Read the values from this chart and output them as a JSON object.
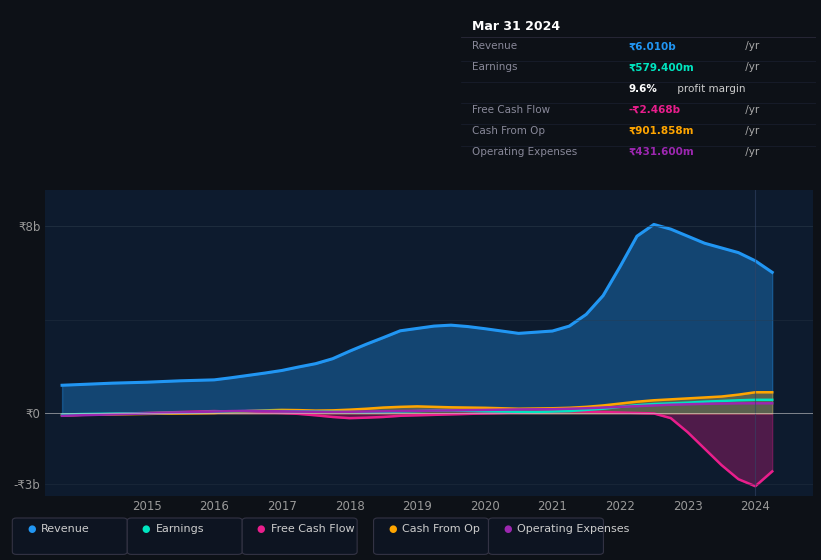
{
  "background_color": "#0d1117",
  "plot_bg_color": "#0d1b2e",
  "ylim": [
    -3500000000,
    9500000000
  ],
  "yticks": [
    -3000000000,
    0,
    8000000000
  ],
  "ytick_labels": [
    "-₹3b",
    "₹0",
    "₹8b"
  ],
  "xlim_start": 2013.5,
  "xlim_end": 2024.85,
  "xtick_years": [
    2015,
    2016,
    2017,
    2018,
    2019,
    2020,
    2021,
    2022,
    2023,
    2024
  ],
  "series": {
    "Revenue": {
      "color": "#2196f3",
      "fill_alpha": 0.35,
      "linewidth": 2.2,
      "x": [
        2013.75,
        2014.0,
        2014.25,
        2014.5,
        2014.75,
        2015.0,
        2015.25,
        2015.5,
        2015.75,
        2016.0,
        2016.25,
        2016.5,
        2016.75,
        2017.0,
        2017.25,
        2017.5,
        2017.75,
        2018.0,
        2018.25,
        2018.5,
        2018.75,
        2019.0,
        2019.25,
        2019.5,
        2019.75,
        2020.0,
        2020.25,
        2020.5,
        2020.75,
        2021.0,
        2021.25,
        2021.5,
        2021.75,
        2022.0,
        2022.25,
        2022.5,
        2022.75,
        2023.0,
        2023.25,
        2023.5,
        2023.75,
        2024.0,
        2024.25
      ],
      "y": [
        1200000000,
        1230000000,
        1260000000,
        1290000000,
        1310000000,
        1330000000,
        1360000000,
        1390000000,
        1410000000,
        1430000000,
        1520000000,
        1620000000,
        1720000000,
        1830000000,
        1980000000,
        2120000000,
        2330000000,
        2650000000,
        2950000000,
        3230000000,
        3520000000,
        3620000000,
        3720000000,
        3760000000,
        3700000000,
        3610000000,
        3510000000,
        3410000000,
        3460000000,
        3510000000,
        3720000000,
        4220000000,
        5020000000,
        6250000000,
        7550000000,
        8050000000,
        7850000000,
        7550000000,
        7250000000,
        7050000000,
        6850000000,
        6500000000,
        6010000000
      ]
    },
    "Earnings": {
      "color": "#00e5c0",
      "linewidth": 1.8,
      "x": [
        2013.75,
        2014.0,
        2014.25,
        2014.5,
        2014.75,
        2015.0,
        2015.25,
        2015.5,
        2015.75,
        2016.0,
        2016.25,
        2016.5,
        2016.75,
        2017.0,
        2017.25,
        2017.5,
        2017.75,
        2018.0,
        2018.25,
        2018.5,
        2018.75,
        2019.0,
        2019.25,
        2019.5,
        2019.75,
        2020.0,
        2020.25,
        2020.5,
        2020.75,
        2021.0,
        2021.25,
        2021.5,
        2021.75,
        2022.0,
        2022.25,
        2022.5,
        2022.75,
        2023.0,
        2023.25,
        2023.5,
        2023.75,
        2024.0,
        2024.25
      ],
      "y": [
        -50000000,
        -30000000,
        -20000000,
        -10000000,
        0,
        10000000,
        20000000,
        30000000,
        50000000,
        70000000,
        90000000,
        100000000,
        110000000,
        100000000,
        90000000,
        80000000,
        70000000,
        60000000,
        50000000,
        60000000,
        80000000,
        100000000,
        120000000,
        130000000,
        110000000,
        90000000,
        80000000,
        70000000,
        60000000,
        80000000,
        100000000,
        150000000,
        200000000,
        280000000,
        350000000,
        400000000,
        430000000,
        460000000,
        500000000,
        530000000,
        560000000,
        579400000,
        579400000
      ]
    },
    "Free Cash Flow": {
      "color": "#e91e8c",
      "fill_alpha": 0.3,
      "linewidth": 1.8,
      "x": [
        2013.75,
        2014.0,
        2014.25,
        2014.5,
        2014.75,
        2015.0,
        2015.25,
        2015.5,
        2015.75,
        2016.0,
        2016.25,
        2016.5,
        2016.75,
        2017.0,
        2017.25,
        2017.5,
        2017.75,
        2018.0,
        2018.25,
        2018.5,
        2018.75,
        2019.0,
        2019.25,
        2019.5,
        2019.75,
        2020.0,
        2020.25,
        2020.5,
        2020.75,
        2021.0,
        2021.25,
        2021.5,
        2021.75,
        2022.0,
        2022.25,
        2022.5,
        2022.75,
        2023.0,
        2023.25,
        2023.5,
        2023.75,
        2024.0,
        2024.25
      ],
      "y": [
        -80000000,
        -60000000,
        -40000000,
        -20000000,
        0,
        20000000,
        40000000,
        60000000,
        80000000,
        100000000,
        80000000,
        60000000,
        40000000,
        20000000,
        -20000000,
        -80000000,
        -150000000,
        -200000000,
        -180000000,
        -150000000,
        -100000000,
        -80000000,
        -60000000,
        -40000000,
        -20000000,
        0,
        20000000,
        40000000,
        60000000,
        80000000,
        100000000,
        80000000,
        60000000,
        40000000,
        20000000,
        0,
        -200000000,
        -800000000,
        -1500000000,
        -2200000000,
        -2800000000,
        -3100000000,
        -2468000000
      ]
    },
    "Cash From Op": {
      "color": "#ffa500",
      "fill_alpha": 0.3,
      "linewidth": 1.8,
      "x": [
        2013.75,
        2014.0,
        2014.25,
        2014.5,
        2014.75,
        2015.0,
        2015.25,
        2015.5,
        2015.75,
        2016.0,
        2016.25,
        2016.5,
        2016.75,
        2017.0,
        2017.25,
        2017.5,
        2017.75,
        2018.0,
        2018.25,
        2018.5,
        2018.75,
        2019.0,
        2019.25,
        2019.5,
        2019.75,
        2020.0,
        2020.25,
        2020.5,
        2020.75,
        2021.0,
        2021.25,
        2021.5,
        2021.75,
        2022.0,
        2022.25,
        2022.5,
        2022.75,
        2023.0,
        2023.25,
        2023.5,
        2023.75,
        2024.0,
        2024.25
      ],
      "y": [
        -80000000,
        -60000000,
        -50000000,
        -40000000,
        -30000000,
        -20000000,
        -10000000,
        0,
        10000000,
        20000000,
        60000000,
        100000000,
        130000000,
        150000000,
        140000000,
        120000000,
        130000000,
        160000000,
        200000000,
        250000000,
        280000000,
        300000000,
        280000000,
        260000000,
        250000000,
        240000000,
        220000000,
        200000000,
        210000000,
        220000000,
        240000000,
        280000000,
        340000000,
        420000000,
        500000000,
        560000000,
        600000000,
        640000000,
        680000000,
        720000000,
        800000000,
        901858000,
        901858000
      ]
    },
    "Operating Expenses": {
      "color": "#9c27b0",
      "linewidth": 1.8,
      "x": [
        2013.75,
        2014.0,
        2014.25,
        2014.5,
        2014.75,
        2015.0,
        2015.25,
        2015.5,
        2015.75,
        2016.0,
        2016.25,
        2016.5,
        2016.75,
        2017.0,
        2017.25,
        2017.5,
        2017.75,
        2018.0,
        2018.25,
        2018.5,
        2018.75,
        2019.0,
        2019.25,
        2019.5,
        2019.75,
        2020.0,
        2020.25,
        2020.5,
        2020.75,
        2021.0,
        2021.25,
        2021.5,
        2021.75,
        2022.0,
        2022.25,
        2022.5,
        2022.75,
        2023.0,
        2023.25,
        2023.5,
        2023.75,
        2024.0,
        2024.25
      ],
      "y": [
        -100000000,
        -80000000,
        -60000000,
        -40000000,
        -20000000,
        0,
        20000000,
        40000000,
        60000000,
        80000000,
        100000000,
        110000000,
        100000000,
        90000000,
        80000000,
        70000000,
        60000000,
        70000000,
        80000000,
        90000000,
        100000000,
        110000000,
        120000000,
        130000000,
        140000000,
        150000000,
        160000000,
        170000000,
        175000000,
        180000000,
        200000000,
        220000000,
        250000000,
        280000000,
        310000000,
        340000000,
        370000000,
        390000000,
        410000000,
        420000000,
        430000000,
        431600000,
        431600000
      ]
    }
  },
  "legend": [
    {
      "label": "Revenue",
      "color": "#2196f3"
    },
    {
      "label": "Earnings",
      "color": "#00e5c0"
    },
    {
      "label": "Free Cash Flow",
      "color": "#e91e8c"
    },
    {
      "label": "Cash From Op",
      "color": "#ffa500"
    },
    {
      "label": "Operating Expenses",
      "color": "#9c27b0"
    }
  ]
}
